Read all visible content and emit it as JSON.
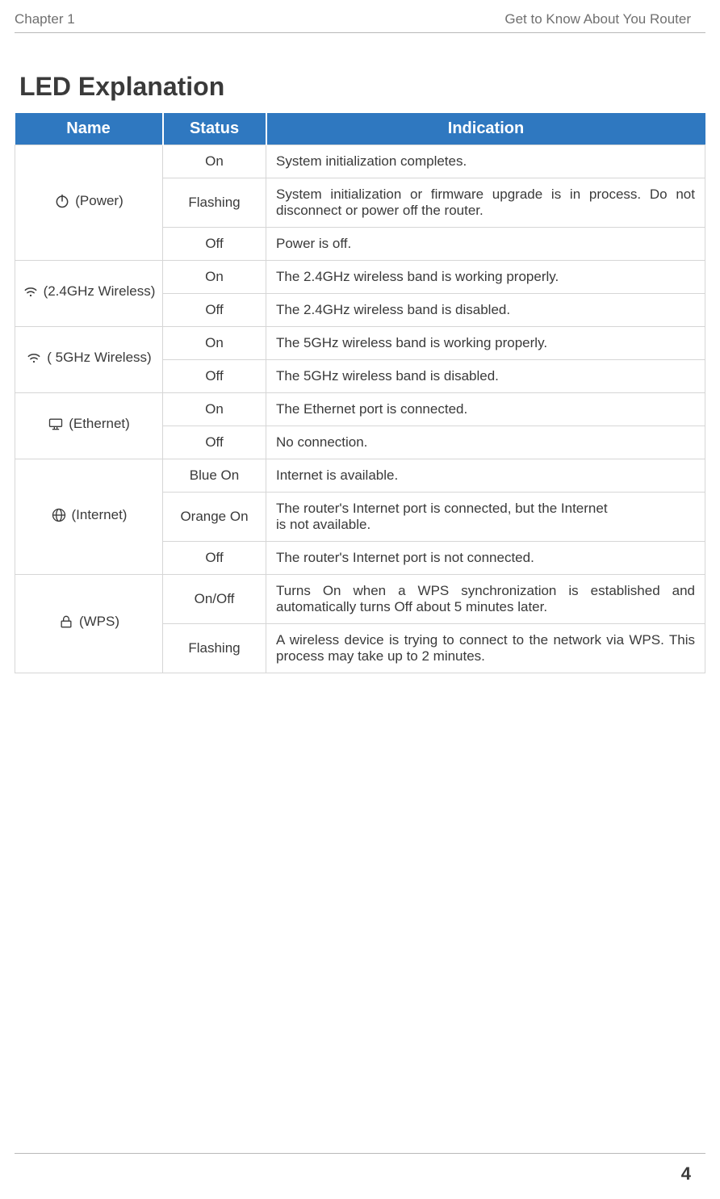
{
  "header": {
    "chapter": "Chapter 1",
    "section": "Get to Know About You Router"
  },
  "title": "LED Explanation",
  "page_number": "4",
  "table": {
    "columns": {
      "name": "Name",
      "status": "Status",
      "indication": "Indication"
    },
    "header_bg": "#2f78c0",
    "header_fg": "#ffffff",
    "border_color": "#d6d6d6",
    "groups": [
      {
        "icon": "power",
        "label": "(Power)",
        "rows": [
          {
            "status": "On",
            "indication": "System initialization completes."
          },
          {
            "status": "Flashing",
            "indication": "System initialization or firmware upgrade is in process. Do not disconnect or power off the router.",
            "justify": true
          },
          {
            "status": "Off",
            "indication": "Power is off."
          }
        ]
      },
      {
        "icon": "wifi",
        "label": "(2.4GHz Wireless)",
        "rows": [
          {
            "status": "On",
            "indication": "The 2.4GHz wireless band is working properly."
          },
          {
            "status": "Off",
            "indication": "The 2.4GHz wireless band is disabled."
          }
        ]
      },
      {
        "icon": "wifi",
        "label": "( 5GHz Wireless)",
        "rows": [
          {
            "status": "On",
            "indication": "The 5GHz wireless band is working properly."
          },
          {
            "status": "Off",
            "indication": "The 5GHz wireless band is disabled."
          }
        ]
      },
      {
        "icon": "ethernet",
        "label": "(Ethernet)",
        "rows": [
          {
            "status": "On",
            "indication": "The Ethernet port is connected."
          },
          {
            "status": "Off",
            "indication": "No connection."
          }
        ]
      },
      {
        "icon": "globe",
        "label": "(Internet)",
        "rows": [
          {
            "status": "Blue On",
            "indication": "Internet is available."
          },
          {
            "status": "Orange On",
            "indication": "The router's Internet port is connected, but the Internet\nis not available."
          },
          {
            "status": "Off",
            "indication": "The router's Internet port is not connected."
          }
        ]
      },
      {
        "icon": "lock",
        "label": "(WPS)",
        "rows": [
          {
            "status": "On/Off",
            "indication": "Turns On when a WPS synchronization is established and automatically turns Off about 5 minutes later.",
            "justify": true
          },
          {
            "status": "Flashing",
            "indication": "A wireless device is trying to connect to the network via WPS. This process may take up to 2 minutes.",
            "justify": true
          }
        ]
      }
    ]
  }
}
